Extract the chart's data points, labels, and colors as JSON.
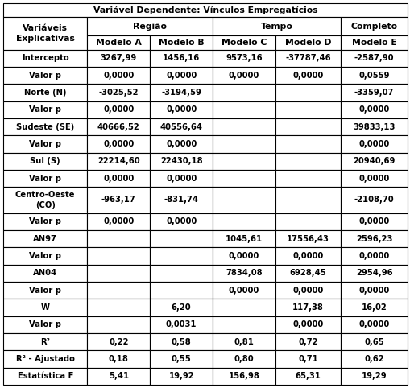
{
  "title": "Variável Dependente: Vínculos Empregatícios",
  "rows": [
    [
      "Intercepto",
      "3267,99",
      "1456,16",
      "9573,16",
      "-37787,46",
      "-2587,90"
    ],
    [
      "Valor p",
      "0,0000",
      "0,0000",
      "0,0000",
      "0,0000",
      "0,0559"
    ],
    [
      "Norte (N)",
      "-3025,52",
      "-3194,59",
      "",
      "",
      "-3359,07"
    ],
    [
      "Valor p",
      "0,0000",
      "0,0000",
      "",
      "",
      "0,0000"
    ],
    [
      "Sudeste (SE)",
      "40666,52",
      "40556,64",
      "",
      "",
      "39833,13"
    ],
    [
      "Valor p",
      "0,0000",
      "0,0000",
      "",
      "",
      "0,0000"
    ],
    [
      "Sul (S)",
      "22214,60",
      "22430,18",
      "",
      "",
      "20940,69"
    ],
    [
      "Valor p",
      "0,0000",
      "0,0000",
      "",
      "",
      "0,0000"
    ],
    [
      "Centro-Oeste\n(CO)",
      "-963,17",
      "-831,74",
      "",
      "",
      "-2108,70"
    ],
    [
      "Valor p",
      "0,0000",
      "0,0000",
      "",
      "",
      "0,0000"
    ],
    [
      "AN97",
      "",
      "",
      "1045,61",
      "17556,43",
      "2596,23"
    ],
    [
      "Valor p",
      "",
      "",
      "0,0000",
      "0,0000",
      "0,0000"
    ],
    [
      "AN04",
      "",
      "",
      "7834,08",
      "6928,45",
      "2954,96"
    ],
    [
      "Valor p",
      "",
      "",
      "0,0000",
      "0,0000",
      "0,0000"
    ],
    [
      "W",
      "",
      "6,20",
      "",
      "117,38",
      "16,02"
    ],
    [
      "Valor p",
      "",
      "0,0031",
      "",
      "0,0000",
      "0,0000"
    ],
    [
      "R²",
      "0,22",
      "0,58",
      "0,81",
      "0,72",
      "0,65"
    ],
    [
      "R² - Ajustado",
      "0,18",
      "0,55",
      "0,80",
      "0,71",
      "0,62"
    ],
    [
      "Estatística F",
      "5,41",
      "19,92",
      "156,98",
      "65,31",
      "19,29"
    ]
  ],
  "background_color": "#ffffff",
  "border_color": "#000000",
  "font_size": 7.2,
  "title_font_size": 7.8,
  "header_font_size": 7.8
}
